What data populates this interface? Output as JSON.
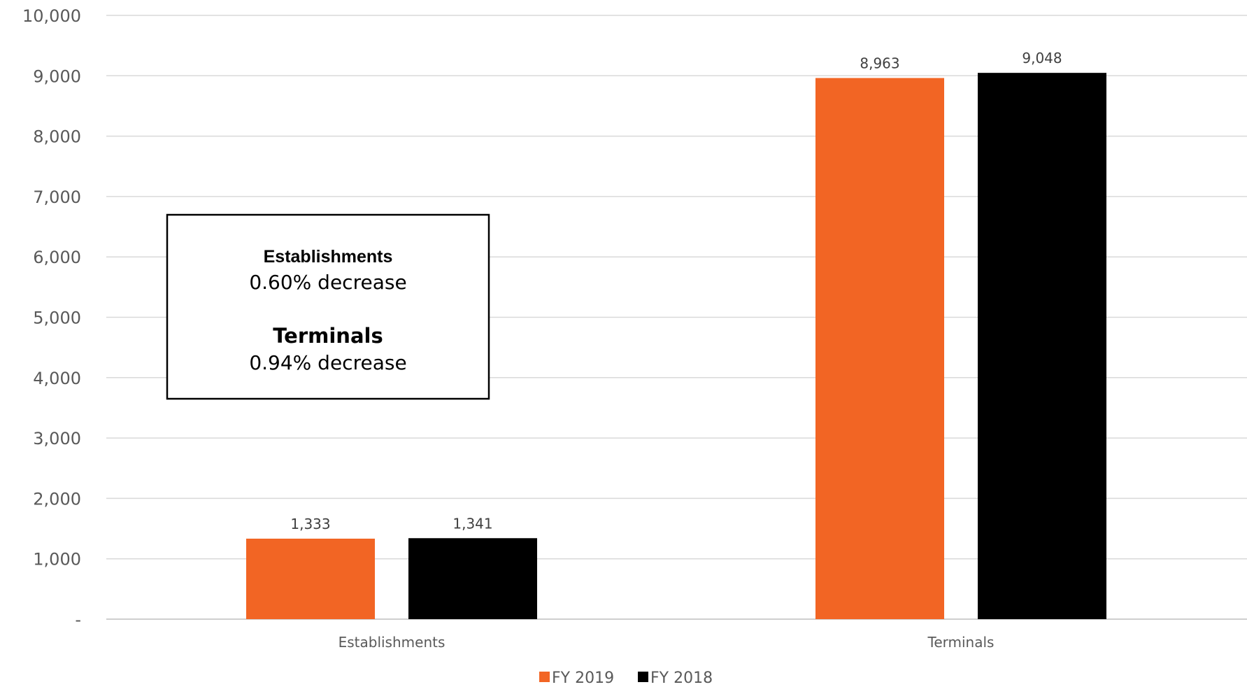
{
  "chart_data": {
    "type": "bar",
    "categories": [
      "Establishments",
      "Terminals"
    ],
    "series": [
      {
        "name": "FY 2019",
        "color": "#F26524",
        "values": [
          1333,
          8963
        ],
        "labels": [
          "1,333",
          "8,963"
        ]
      },
      {
        "name": "FY 2018",
        "color": "#000000",
        "values": [
          1341,
          9048
        ],
        "labels": [
          "1,341",
          "9,048"
        ]
      }
    ],
    "ylim": [
      0,
      10000
    ],
    "yticks": [
      {
        "value": 0,
        "label": "-"
      },
      {
        "value": 1000,
        "label": "1,000"
      },
      {
        "value": 2000,
        "label": "2,000"
      },
      {
        "value": 3000,
        "label": "3,000"
      },
      {
        "value": 4000,
        "label": "4,000"
      },
      {
        "value": 5000,
        "label": "5,000"
      },
      {
        "value": 6000,
        "label": "6,000"
      },
      {
        "value": 7000,
        "label": "7,000"
      },
      {
        "value": 8000,
        "label": "8,000"
      },
      {
        "value": 9000,
        "label": "9,000"
      },
      {
        "value": 10000,
        "label": "10,000"
      }
    ],
    "grid": true,
    "legend": "bottom",
    "title": "",
    "xlabel": "",
    "ylabel": "",
    "annotation": {
      "lines": [
        {
          "heading": "Establishments",
          "text": "0.60% decrease"
        },
        {
          "heading": "Terminals",
          "text": "0.94% decrease"
        }
      ]
    }
  },
  "colors": {
    "grid": "#D9D9D9",
    "axis": "#BFBFBF"
  }
}
